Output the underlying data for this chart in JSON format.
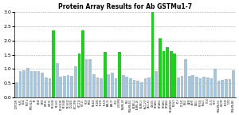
{
  "title": "Protein Array Results for Ab GSTMu1-7",
  "ylim": [
    0.0,
    3.0
  ],
  "yticks": [
    0.0,
    0.5,
    1.0,
    1.5,
    2.0,
    2.5,
    3.0
  ],
  "bar_color_default": "#a8c4d8",
  "bar_color_high": "#22cc22",
  "threshold_green": 1.5,
  "labels": [
    "CCRFCEM",
    "HL-60",
    "K-562",
    "MOLT-4",
    "RPMI-8226",
    "SR",
    "A549",
    "EKVX",
    "HOP-62",
    "HOP-92",
    "NCI-H226",
    "NCI-H23",
    "NCI-H322M",
    "NCI-H460",
    "NCI-H522",
    "COLO205",
    "HCC-2998",
    "HCT-116",
    "HCT-15",
    "HT29",
    "KM12",
    "SW-620",
    "SF-268",
    "SF-295",
    "SF-539",
    "SNB-19",
    "SNB-75",
    "U251",
    "LOX IMVI",
    "MALME-3M",
    "M14",
    "MDA-MB-435",
    "SK-MEL-2",
    "SK-MEL-28",
    "SK-MEL-5",
    "UACC-257",
    "UACC-62",
    "IGR-OV1",
    "OVCAR-3",
    "OVCAR-4",
    "OVCAR-5",
    "OVCAR-8",
    "NCI/ADR-RES",
    "SK-OV-3",
    "PC-3",
    "DU-145",
    "786-0",
    "A498",
    "ACHN",
    "CAKI-1",
    "RXF393",
    "SN12C",
    "TK-10",
    "UO-31",
    "MCF7",
    "MDA-MB-231",
    "HS578T",
    "BT-549",
    "T-47D",
    "MDA-MB-468"
  ],
  "values": [
    0.55,
    0.92,
    0.95,
    1.05,
    0.92,
    0.92,
    0.92,
    0.88,
    0.7,
    0.68,
    2.35,
    1.2,
    0.72,
    0.75,
    0.78,
    0.75,
    1.1,
    1.55,
    2.35,
    1.35,
    1.35,
    0.82,
    0.7,
    0.68,
    1.6,
    0.82,
    0.88,
    0.68,
    1.6,
    0.8,
    0.72,
    0.68,
    0.62,
    0.58,
    0.55,
    0.68,
    0.7,
    3.0,
    0.92,
    2.08,
    1.62,
    1.78,
    1.62,
    1.55,
    0.7,
    0.75,
    1.35,
    0.75,
    0.8,
    0.72,
    0.68,
    0.72,
    0.7,
    0.68,
    1.02,
    0.58,
    0.62,
    0.65,
    0.65,
    0.95
  ]
}
